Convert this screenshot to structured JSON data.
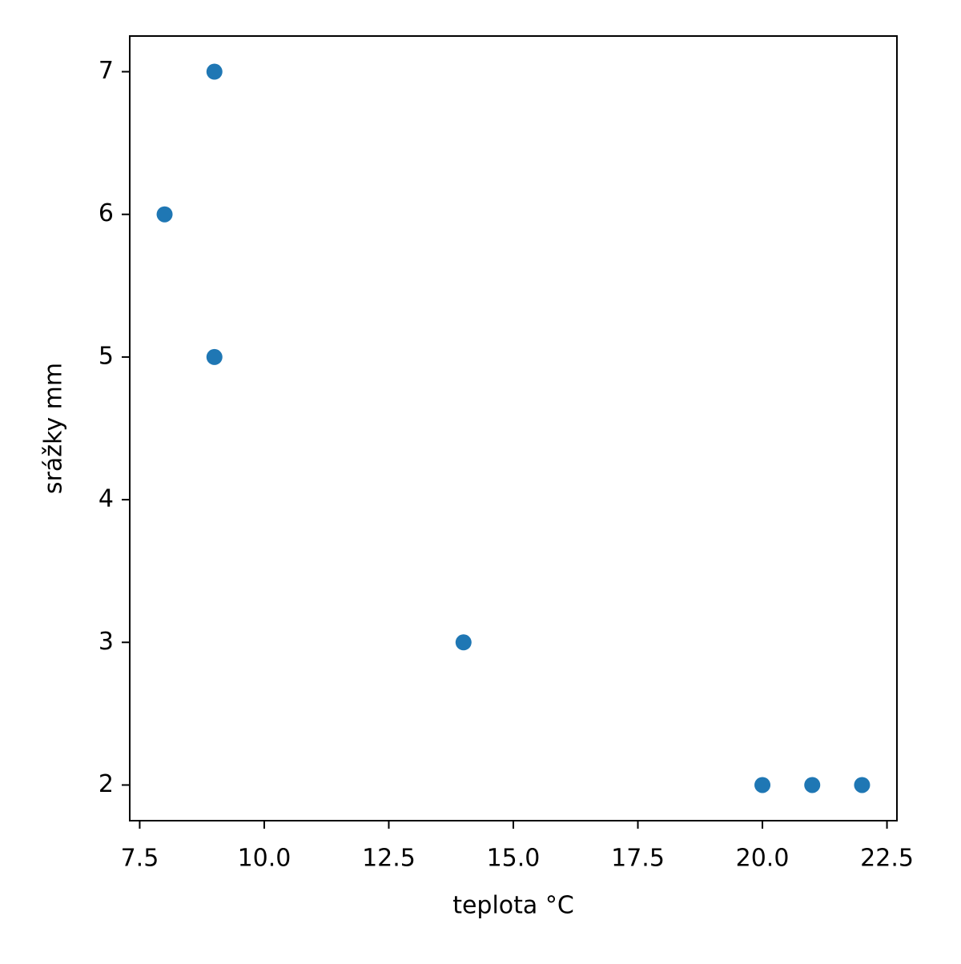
{
  "chart_data": {
    "type": "scatter",
    "xlabel": "teplota °C",
    "ylabel": "srážky mm",
    "series": [
      {
        "color": "#1f77b4",
        "x": [
          9,
          8,
          9,
          14,
          20,
          21,
          22
        ],
        "values": [
          7,
          6,
          5,
          3,
          2,
          2,
          2
        ]
      }
    ],
    "xlim": [
      7.3,
      22.7
    ],
    "ylim": [
      1.75,
      7.25
    ],
    "xticks": [
      {
        "value": 7.5,
        "label": "7.5"
      },
      {
        "value": 10,
        "label": "10.0"
      },
      {
        "value": 12.5,
        "label": "12.5"
      },
      {
        "value": 15,
        "label": "15.0"
      },
      {
        "value": 17.5,
        "label": "17.5"
      },
      {
        "value": 20,
        "label": "20.0"
      },
      {
        "value": 22.5,
        "label": "22.5"
      }
    ],
    "yticks": [
      2,
      3,
      4,
      5,
      6,
      7
    ]
  }
}
